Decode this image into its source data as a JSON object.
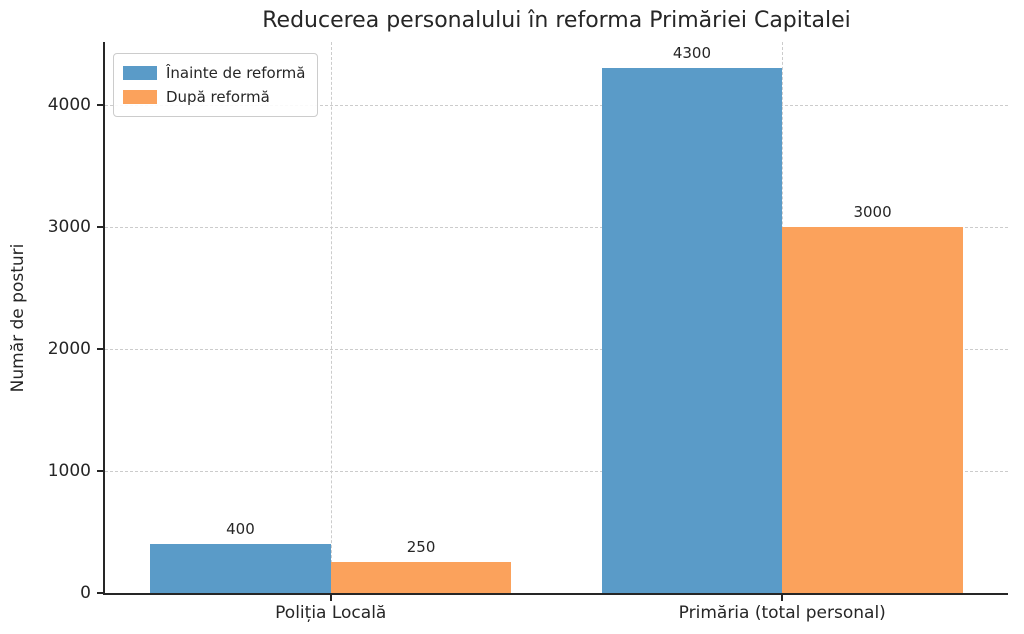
{
  "chart_data": {
    "type": "bar",
    "title": "Reducerea personalului în reforma Primăriei Capitalei",
    "xlabel": "",
    "ylabel": "Număr de posturi",
    "categories": [
      "Poliția Locală",
      "Primăria (total personal)"
    ],
    "series": [
      {
        "name": "Înainte de reformă",
        "color": "#5a9bc8",
        "values": [
          400,
          4300
        ],
        "bar_labels": [
          "400",
          "4300"
        ]
      },
      {
        "name": "După reformă",
        "color": "#fba25c",
        "values": [
          250,
          3000
        ],
        "bar_labels": [
          "250",
          "3000"
        ]
      }
    ],
    "yticks": [
      0,
      1000,
      2000,
      3000,
      4000
    ],
    "ytick_labels": [
      "0",
      "1000",
      "2000",
      "3000",
      "4000"
    ],
    "ylim": [
      0,
      4516
    ],
    "grid": "both-dashed",
    "legend_position": "upper left",
    "colors": {
      "before_reform": "#5a9bc8",
      "after_reform": "#fba25c",
      "gridline": "#cccccc",
      "spine": "#262626",
      "text": "#262626",
      "background": "#ffffff"
    }
  }
}
